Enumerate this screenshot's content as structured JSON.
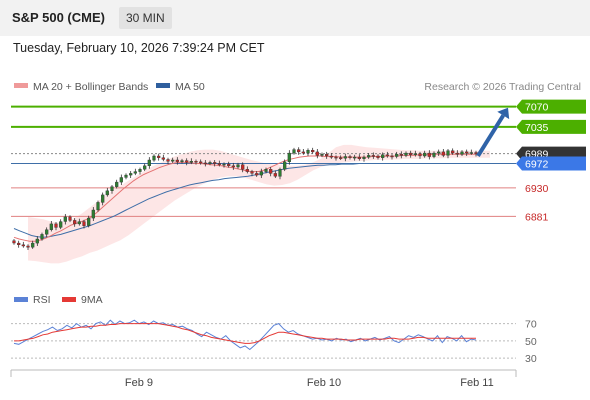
{
  "header": {
    "title": "S&P 500 (CME)",
    "timeframe": "30 MIN"
  },
  "date_line": "Tuesday, February 10, 2026 7:39:24 PM CET",
  "legend": {
    "ma20": "MA 20 + Bollinger Bands",
    "ma50": "MA 50",
    "credit": "Research © 2026 Trading Central"
  },
  "rsi_legend": {
    "rsi": "RSI",
    "ma9": "9MA"
  },
  "colors": {
    "up": "#2e7d32",
    "down": "#c62828",
    "ma20": "#e57373",
    "ma50": "#3f6fa8",
    "resistance": "#4caf00",
    "support_line": "#e08080",
    "support_text": "#c62828",
    "current": "#333333",
    "ma50_tag": "#3b78e7",
    "arrow": "#2f63a8",
    "band": "#fde2e2",
    "rsi": "#5b82d6",
    "rsi_ma": "#e53935"
  },
  "chart_data": [
    {
      "type": "candlestick",
      "title": "S&P 500 (CME)",
      "timeframe": "30 MIN",
      "x_ticks": [
        "Feb 9",
        "Feb 10",
        "Feb 11"
      ],
      "y_range": [
        6780,
        7090
      ],
      "levels": [
        {
          "value": 7070,
          "label": "7070",
          "kind": "resistance"
        },
        {
          "value": 7035,
          "label": "7035",
          "kind": "resistance"
        },
        {
          "value": 6989,
          "label": "6989",
          "kind": "current"
        },
        {
          "value": 6972,
          "label": "6972",
          "kind": "ma50"
        },
        {
          "value": 6930,
          "label": "6930",
          "kind": "support"
        },
        {
          "value": 6881,
          "label": "6881",
          "kind": "support"
        }
      ],
      "arrow": {
        "from": 6985,
        "to": 7068,
        "direction": "up"
      },
      "close": [
        6835,
        6832,
        6830,
        6828,
        6835,
        6842,
        6850,
        6858,
        6868,
        6862,
        6872,
        6880,
        6874,
        6868,
        6872,
        6865,
        6878,
        6892,
        6905,
        6918,
        6925,
        6932,
        6940,
        6948,
        6952,
        6955,
        6958,
        6962,
        6968,
        6978,
        6985,
        6982,
        6979,
        6976,
        6978,
        6975,
        6977,
        6974,
        6976,
        6975,
        6973,
        6972,
        6974,
        6972,
        6970,
        6971,
        6968,
        6966,
        6970,
        6962,
        6958,
        6955,
        6952,
        6958,
        6962,
        6955,
        6950,
        6962,
        6975,
        6990,
        6996,
        6992,
        6990,
        6995,
        6992,
        6986,
        6988,
        6985,
        6983,
        6982,
        6981,
        6984,
        6982,
        6983,
        6980,
        6983,
        6986,
        6985,
        6982,
        6987,
        6985,
        6984,
        6988,
        6986,
        6990,
        6987,
        6989,
        6985,
        6990,
        6984,
        6990,
        6992,
        6986,
        6994,
        6990,
        6988,
        6992,
        6990,
        6991,
        6989
      ],
      "ma20": [
        6845,
        6842,
        6840,
        6838,
        6838,
        6840,
        6843,
        6847,
        6852,
        6856,
        6861,
        6866,
        6869,
        6872,
        6876,
        6881,
        6888,
        6896,
        6904,
        6912,
        6920,
        6928,
        6935,
        6942,
        6948,
        6953,
        6957,
        6961,
        6965,
        6968,
        6971,
        6973,
        6974,
        6974,
        6973,
        6972,
        6972,
        6971,
        6970,
        6969,
        6968,
        6966,
        6965,
        6963,
        6961,
        6959,
        6958,
        6958,
        6960,
        6964,
        6968,
        6972,
        6976,
        6979,
        6981,
        6983,
        6984,
        6985,
        6985,
        6985,
        6984,
        6984,
        6984,
        6983,
        6983,
        6983,
        6983,
        6983,
        6983,
        6984,
        6984,
        6984,
        6985,
        6985,
        6985,
        6986,
        6986,
        6986,
        6987,
        6987,
        6987,
        6988,
        6988,
        6988,
        6988,
        6988,
        6988,
        6988,
        6988,
        6988
      ],
      "ma50": [
        6860,
        6856,
        6852,
        6848,
        6846,
        6845,
        6846,
        6848,
        6850,
        6853,
        6856,
        6859,
        6862,
        6865,
        6869,
        6873,
        6877,
        6881,
        6886,
        6891,
        6896,
        6901,
        6906,
        6911,
        6915,
        6919,
        6923,
        6926,
        6929,
        6932,
        6935,
        6937,
        6939,
        6941,
        6943,
        6944,
        6946,
        6947,
        6948,
        6949,
        6950,
        6952,
        6954,
        6956,
        6958,
        6960,
        6962,
        6964,
        6965,
        6966,
        6967,
        6968,
        6969,
        6969,
        6970,
        6970,
        6971,
        6971,
        6971,
        6972,
        6972,
        6972,
        6972,
        6972,
        6972,
        6972,
        6972,
        6972,
        6972,
        6972,
        6972,
        6972,
        6972,
        6972,
        6972,
        6972,
        6972,
        6972,
        6972,
        6972
      ],
      "bb_upper": [
        6880,
        6878,
        6876,
        6872,
        6870,
        6872,
        6878,
        6886,
        6896,
        6906,
        6916,
        6926,
        6934,
        6942,
        6950,
        6958,
        6966,
        6972,
        6978,
        6984,
        6988,
        6992,
        6995,
        6996,
        6996,
        6994,
        6990,
        6986,
        6982,
        6978,
        6975,
        6972,
        6970,
        6969,
        6968,
        6968,
        6970,
        6974,
        6980,
        6990,
        7000,
        7004,
        7004,
        7002,
        7000,
        6999,
        6998,
        6997,
        6996,
        6995,
        6995,
        6994,
        6994,
        6994,
        6994,
        6994,
        6994,
        6994,
        6994,
        6994,
        6994
      ],
      "bb_lower": [
        6805,
        6804,
        6802,
        6800,
        6800,
        6803,
        6808,
        6812,
        6818,
        6822,
        6828,
        6834,
        6840,
        6848,
        6858,
        6868,
        6878,
        6888,
        6898,
        6908,
        6916,
        6924,
        6932,
        6938,
        6944,
        6948,
        6950,
        6950,
        6948,
        6944,
        6940,
        6936,
        6934,
        6935,
        6938,
        6944,
        6952,
        6960,
        6966,
        6970,
        6972,
        6974,
        6975,
        6976,
        6977,
        6978,
        6978,
        6979,
        6979,
        6980,
        6980,
        6980,
        6981,
        6981,
        6981,
        6982,
        6982,
        6982,
        6982,
        6982,
        6982
      ],
      "rsi": {
        "levels": [
          70,
          50,
          30
        ],
        "y_range": [
          22,
          80
        ],
        "rsi": [
          47,
          46,
          49,
          52,
          55,
          58,
          61,
          63,
          66,
          62,
          64,
          68,
          65,
          70,
          66,
          68,
          64,
          70,
          72,
          68,
          74,
          69,
          73,
          70,
          71,
          74,
          70,
          72,
          69,
          73,
          70,
          71,
          68,
          69,
          66,
          67,
          64,
          62,
          58,
          55,
          60,
          57,
          54,
          52,
          56,
          50,
          46,
          42,
          44,
          40,
          45,
          50,
          56,
          62,
          68,
          70,
          64,
          60,
          62,
          58,
          56,
          54,
          52,
          53,
          51,
          52,
          50,
          53,
          51,
          52,
          49,
          51,
          53,
          50,
          52,
          54,
          51,
          53,
          55,
          50,
          48,
          52,
          56,
          54,
          57,
          55,
          52,
          50,
          56,
          48,
          55,
          53,
          50,
          56,
          49,
          52,
          51
        ],
        "ma9": [
          50,
          50,
          51,
          52,
          53,
          55,
          57,
          58,
          60,
          61,
          62,
          63,
          64,
          65,
          66,
          66,
          67,
          67,
          68,
          68,
          69,
          69,
          70,
          70,
          70,
          70,
          70,
          70,
          70,
          70,
          70,
          69,
          68,
          67,
          66,
          64,
          63,
          61,
          59,
          57,
          56,
          54,
          53,
          52,
          51,
          50,
          49,
          48,
          47,
          47,
          48,
          50,
          53,
          56,
          58,
          60,
          60,
          59,
          58,
          57,
          56,
          55,
          54,
          53,
          53,
          52,
          52,
          52,
          52,
          51,
          51,
          51,
          52,
          52,
          52,
          52,
          52,
          52,
          53,
          53,
          52,
          52,
          52,
          53,
          54,
          54,
          53,
          53,
          53,
          53,
          53,
          53,
          53,
          53,
          53,
          53,
          53
        ]
      }
    }
  ]
}
